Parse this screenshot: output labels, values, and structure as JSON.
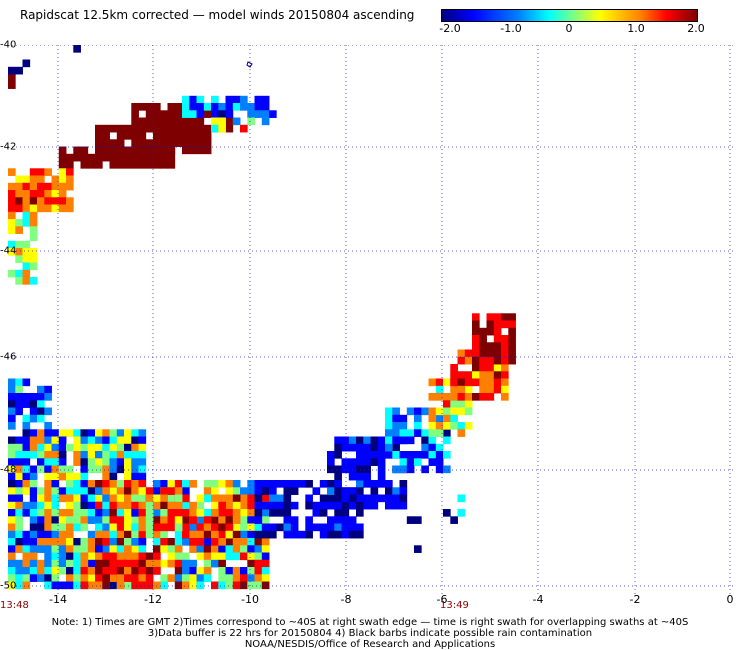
{
  "header": {
    "title": "Rapidscat 12.5km corrected — model winds 20150804 ascending"
  },
  "colorbar": {
    "ticks": [
      "-2.0",
      "-1.0",
      "0",
      "1.0",
      "2.0"
    ],
    "range": [
      -2.0,
      2.0
    ],
    "colors": [
      "#00007f",
      "#0000ff",
      "#0080ff",
      "#00ffff",
      "#80ff80",
      "#ffff00",
      "#ff8000",
      "#ff0000",
      "#7f0000"
    ]
  },
  "map": {
    "lon_range": [
      -15,
      0
    ],
    "lat_range": [
      -50,
      -40
    ],
    "x_ticks": [
      "-14",
      "-12",
      "-10",
      "-8",
      "-6",
      "-4",
      "-2",
      "0"
    ],
    "y_ticks": [
      "-40",
      "-42",
      "-44",
      "-46",
      "-48",
      "-50"
    ],
    "grid": true,
    "time_labels": [
      "13:48",
      "13:49"
    ]
  },
  "notes": {
    "line1": "Note: 1) Times are GMT 2)Times correspond to ~40S at right swath edge — time is right swath for overlapping swaths at ~40S",
    "line2": "3)Data buffer is 22 hrs for 20150804 4) Black barbs indicate possible rain contamination",
    "line3": "NOAA/NESDIS/Office of Research and Applications"
  }
}
